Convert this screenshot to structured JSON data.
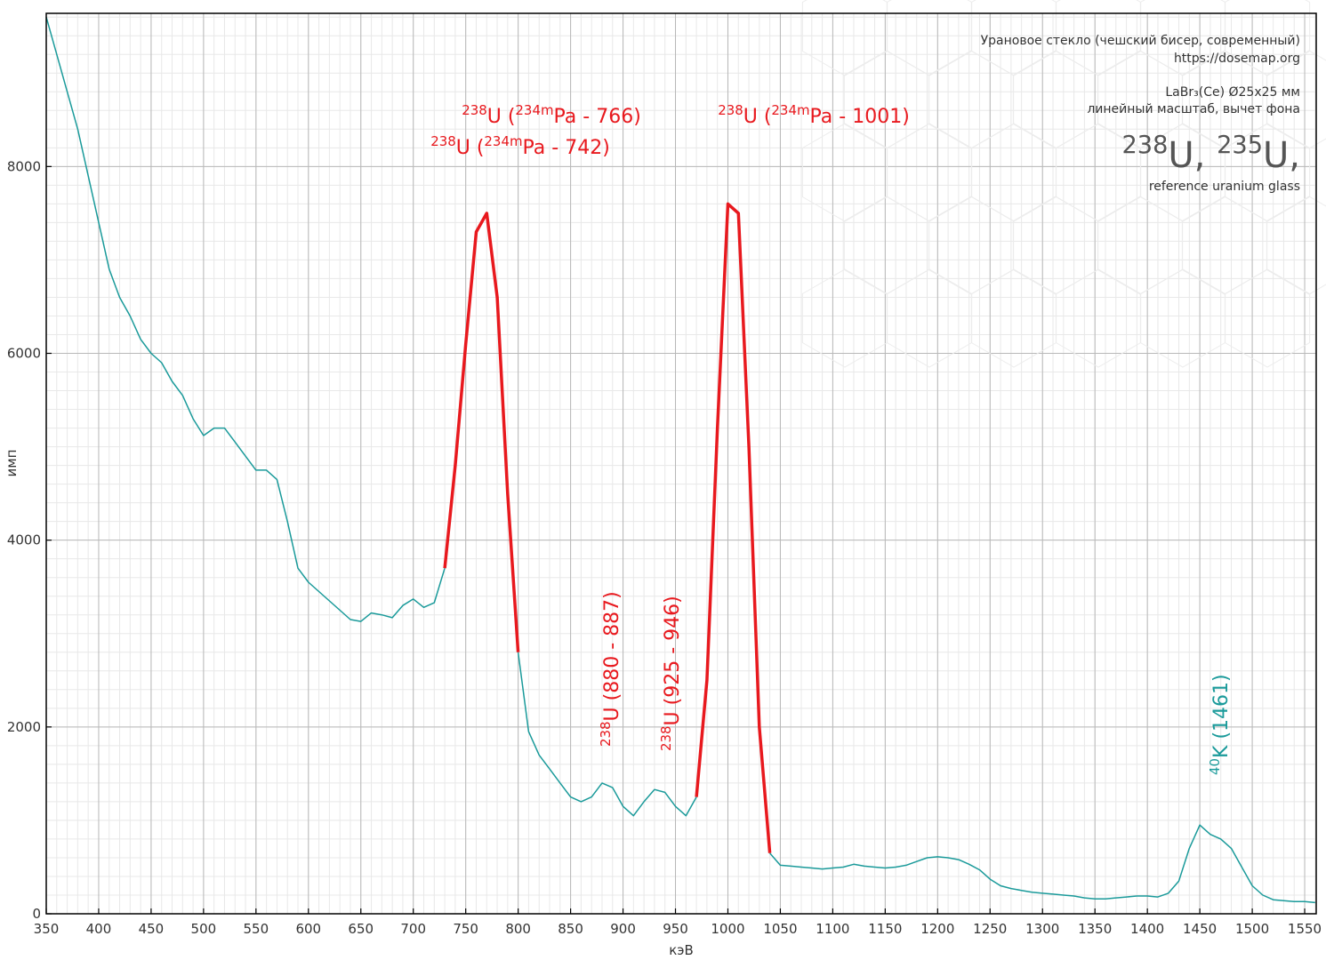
{
  "chart_data": {
    "type": "line",
    "xlabel": "кэВ",
    "ylabel": "имп",
    "x": [
      350,
      360,
      370,
      380,
      390,
      400,
      410,
      420,
      430,
      440,
      450,
      460,
      470,
      480,
      490,
      500,
      510,
      520,
      530,
      540,
      550,
      560,
      570,
      580,
      590,
      600,
      610,
      620,
      630,
      640,
      650,
      660,
      670,
      680,
      690,
      700,
      710,
      720,
      730,
      740,
      750,
      760,
      770,
      780,
      790,
      800,
      810,
      820,
      830,
      840,
      850,
      860,
      870,
      880,
      890,
      900,
      910,
      920,
      930,
      940,
      950,
      960,
      970,
      980,
      990,
      1000,
      1010,
      1020,
      1030,
      1040,
      1050,
      1060,
      1070,
      1080,
      1090,
      1100,
      1110,
      1120,
      1130,
      1140,
      1150,
      1160,
      1170,
      1180,
      1190,
      1200,
      1210,
      1220,
      1230,
      1240,
      1250,
      1260,
      1270,
      1280,
      1290,
      1300,
      1310,
      1320,
      1330,
      1340,
      1350,
      1360,
      1370,
      1380,
      1390,
      1400,
      1410,
      1420,
      1430,
      1440,
      1450,
      1460,
      1470,
      1480,
      1490,
      1500,
      1510,
      1520,
      1530,
      1540,
      1550,
      1560
    ],
    "series": [
      {
        "color": "#1a9a9a",
        "values": [
          9600,
          9200,
          8800,
          8400,
          7900,
          7400,
          6900,
          6600,
          6400,
          6150,
          6000,
          5900,
          5700,
          5550,
          5300,
          5120,
          5200,
          5200,
          5050,
          4900,
          4750,
          4750,
          4650,
          4200,
          3700,
          3550,
          3450,
          3350,
          3250,
          3150,
          3130,
          3220,
          3200,
          3170,
          3300,
          3370,
          3280,
          3330,
          3700,
          null,
          null,
          null,
          null,
          null,
          null,
          2800,
          1950,
          1700,
          1550,
          1400,
          1250,
          1200,
          1250,
          1400,
          1350,
          1150,
          1050,
          1200,
          1330,
          1300,
          1150,
          1050,
          1250,
          null,
          null,
          null,
          null,
          null,
          null,
          650,
          520,
          510,
          500,
          490,
          480,
          490,
          500,
          530,
          510,
          500,
          490,
          500,
          520,
          560,
          600,
          610,
          600,
          580,
          530,
          470,
          370,
          300,
          270,
          250,
          230,
          220,
          210,
          200,
          190,
          170,
          160,
          160,
          170,
          180,
          190,
          190,
          180,
          220,
          350,
          700,
          950,
          850,
          800,
          700,
          500,
          300,
          200,
          150,
          140,
          130,
          130,
          120
        ]
      },
      {
        "color": "#e8191e",
        "values": [
          null,
          null,
          null,
          null,
          null,
          null,
          null,
          null,
          null,
          null,
          null,
          null,
          null,
          null,
          null,
          null,
          null,
          null,
          null,
          null,
          null,
          null,
          null,
          null,
          null,
          null,
          null,
          null,
          null,
          null,
          null,
          null,
          null,
          null,
          null,
          null,
          null,
          null,
          3700,
          4800,
          6100,
          7300,
          7500,
          6600,
          4500,
          2800,
          null,
          null,
          null,
          null,
          null,
          null,
          null,
          null,
          null,
          null,
          null,
          null,
          null,
          null,
          null,
          null,
          1250,
          2500,
          5200,
          7600,
          7500,
          5000,
          2000,
          650,
          null,
          null,
          null,
          null,
          null,
          null,
          null,
          null,
          null,
          null,
          null,
          null,
          null,
          null,
          null,
          null,
          null,
          null,
          null,
          null,
          null,
          null,
          null,
          null,
          null,
          null,
          null,
          null,
          null,
          null,
          null,
          null,
          null,
          null,
          null,
          null,
          null,
          null,
          null,
          null,
          null,
          null,
          null,
          null,
          null,
          null,
          null,
          null,
          null,
          null,
          null,
          null
        ]
      }
    ],
    "xlim": [
      350,
      1561
    ],
    "ylim": [
      0,
      9640
    ],
    "xticks": [
      350,
      400,
      450,
      500,
      550,
      600,
      650,
      700,
      750,
      800,
      850,
      900,
      950,
      1000,
      1050,
      1100,
      1150,
      1200,
      1250,
      1300,
      1350,
      1400,
      1450,
      1500,
      1550
    ],
    "yticks": [
      0,
      2000,
      4000,
      6000,
      8000
    ],
    "grid": true,
    "minor_xstep": 10,
    "minor_ystep": 200,
    "annotations": [
      {
        "color": "#e8191e",
        "parts": [
          "238",
          "U (",
          "234m",
          "Pa - 766)"
        ]
      },
      {
        "color": "#e8191e",
        "parts": [
          "238",
          "U (",
          "234m",
          "Pa - 742)"
        ]
      },
      {
        "color": "#e8191e",
        "parts": [
          "238",
          "U (",
          "234m",
          "Pa - 1001)"
        ]
      },
      {
        "color": "#e8191e",
        "parts": [
          "238",
          "U (880 - 887)"
        ]
      },
      {
        "color": "#e8191e",
        "parts": [
          "238",
          "U (925 - 946)"
        ]
      },
      {
        "color": "#1a9a9a",
        "parts": [
          "40",
          "K (1461)"
        ]
      }
    ],
    "info": [
      "Урановое стекло (чешский бисер, современный)",
      "https://dosemap.org",
      "LaBr₃(Ce) Ø25x25 мм",
      "линейный масштаб, вычет фона"
    ],
    "info_title": [
      "238",
      "U, ",
      "235",
      "U,"
    ],
    "info_subtitle": "reference uranium glass"
  }
}
